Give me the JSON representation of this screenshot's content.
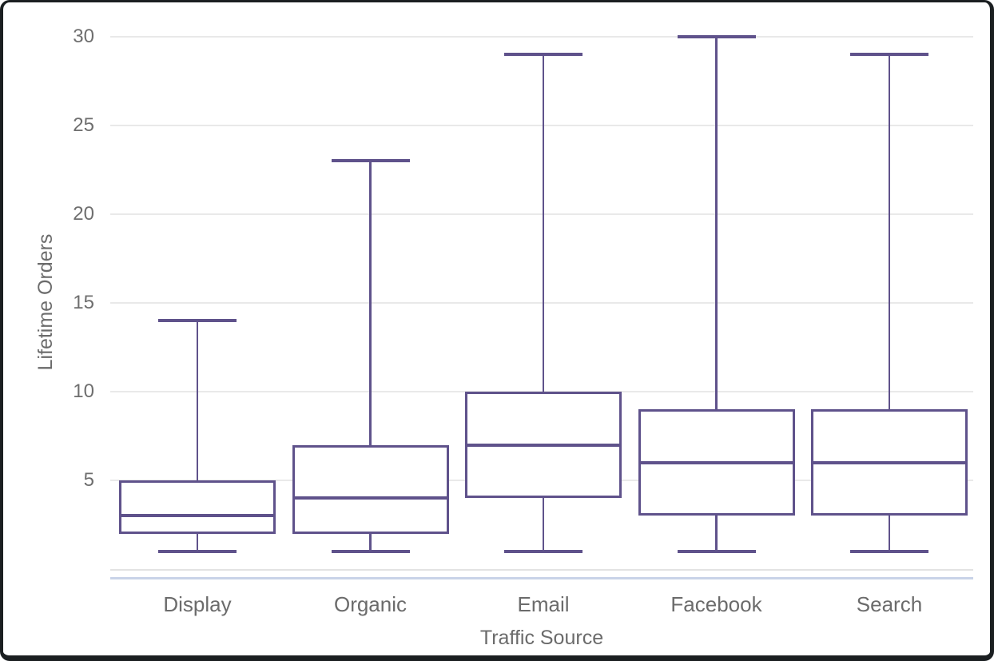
{
  "chart_data": {
    "type": "box",
    "title": "",
    "xlabel": "Traffic Source",
    "ylabel": "Lifetime Orders",
    "categories": [
      "Display",
      "Organic",
      "Email",
      "Facebook",
      "Search"
    ],
    "series": [
      {
        "name": "Display",
        "min": 1,
        "q1": 2,
        "median": 3,
        "q3": 5,
        "max": 14
      },
      {
        "name": "Organic",
        "min": 1,
        "q1": 2,
        "median": 4,
        "q3": 7,
        "max": 23
      },
      {
        "name": "Email",
        "min": 1,
        "q1": 4,
        "median": 7,
        "q3": 10,
        "max": 29
      },
      {
        "name": "Facebook",
        "min": 1,
        "q1": 3,
        "median": 6,
        "q3": 9,
        "max": 30
      },
      {
        "name": "Search",
        "min": 1,
        "q1": 3,
        "median": 6,
        "q3": 9,
        "max": 29
      }
    ],
    "yticks": [
      5,
      10,
      15,
      20,
      25,
      30
    ],
    "ylim": [
      0,
      30.5
    ],
    "grid": true,
    "legend": "none",
    "colors": {
      "box": "#5f528b",
      "gridline": "#e9e9e9",
      "axis_line": "#e2e2e2",
      "accent_line": "#c9d3e8",
      "label_text": "#6b6b6b"
    }
  }
}
